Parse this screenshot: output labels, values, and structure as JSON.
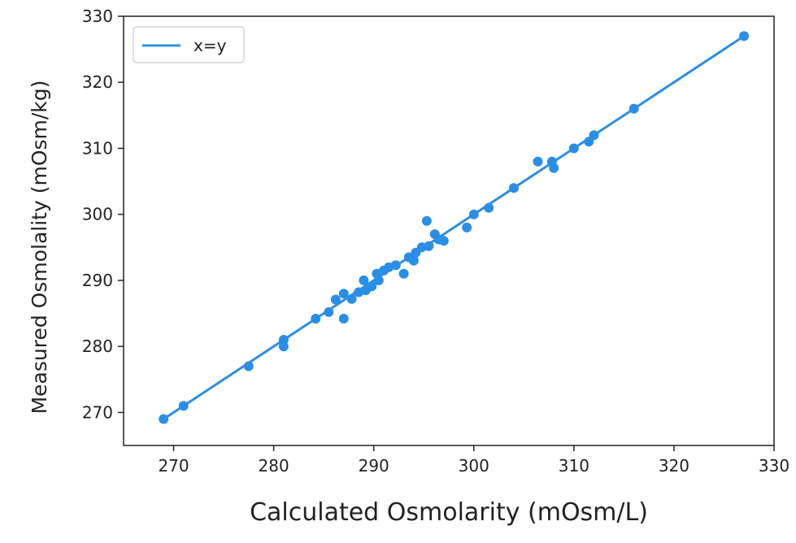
{
  "chart_data": {
    "type": "scatter",
    "title": "",
    "xlabel": "Calculated Osmolarity (mOsm/L)",
    "ylabel": "Measured Osmolality (mOsm/kg)",
    "xlim": [
      265,
      330
    ],
    "ylim": [
      265,
      330
    ],
    "xticks": [
      270,
      280,
      290,
      300,
      310,
      320,
      330
    ],
    "yticks": [
      270,
      280,
      290,
      300,
      310,
      320,
      330
    ],
    "grid": false,
    "legend": {
      "position": "top-left",
      "entries": [
        {
          "label": "x=y",
          "marker": "line"
        }
      ]
    },
    "colors": {
      "series": "#2b8ee6",
      "axis": "#222222",
      "legend_border": "#cccccc"
    },
    "series": [
      {
        "name": "x=y",
        "kind": "line",
        "x": [
          269,
          327
        ],
        "y": [
          269,
          327
        ]
      },
      {
        "name": "samples",
        "kind": "points",
        "points": [
          [
            269,
            269
          ],
          [
            271,
            271
          ],
          [
            277.5,
            277
          ],
          [
            281,
            281
          ],
          [
            281,
            280
          ],
          [
            284.2,
            284.2
          ],
          [
            285.5,
            285.2
          ],
          [
            286.2,
            287.1
          ],
          [
            287,
            288
          ],
          [
            287,
            284.2
          ],
          [
            287.8,
            287.2
          ],
          [
            288.5,
            288.2
          ],
          [
            289,
            290
          ],
          [
            289.2,
            288.5
          ],
          [
            289.8,
            289.1
          ],
          [
            290.3,
            291
          ],
          [
            290.5,
            290
          ],
          [
            291,
            291.5
          ],
          [
            291.5,
            292
          ],
          [
            292.2,
            292.3
          ],
          [
            293,
            291
          ],
          [
            293.5,
            293.5
          ],
          [
            294,
            293
          ],
          [
            294.2,
            294.2
          ],
          [
            294.8,
            295
          ],
          [
            295.3,
            299
          ],
          [
            295.5,
            295.2
          ],
          [
            296.1,
            297
          ],
          [
            296.5,
            296.2
          ],
          [
            297,
            296
          ],
          [
            299.3,
            298
          ],
          [
            300,
            300
          ],
          [
            301.5,
            301
          ],
          [
            304,
            304
          ],
          [
            306.4,
            308
          ],
          [
            307.8,
            308
          ],
          [
            308,
            307
          ],
          [
            310,
            310
          ],
          [
            311.5,
            311
          ],
          [
            312,
            312
          ],
          [
            316,
            316
          ],
          [
            327,
            327
          ]
        ]
      }
    ]
  }
}
